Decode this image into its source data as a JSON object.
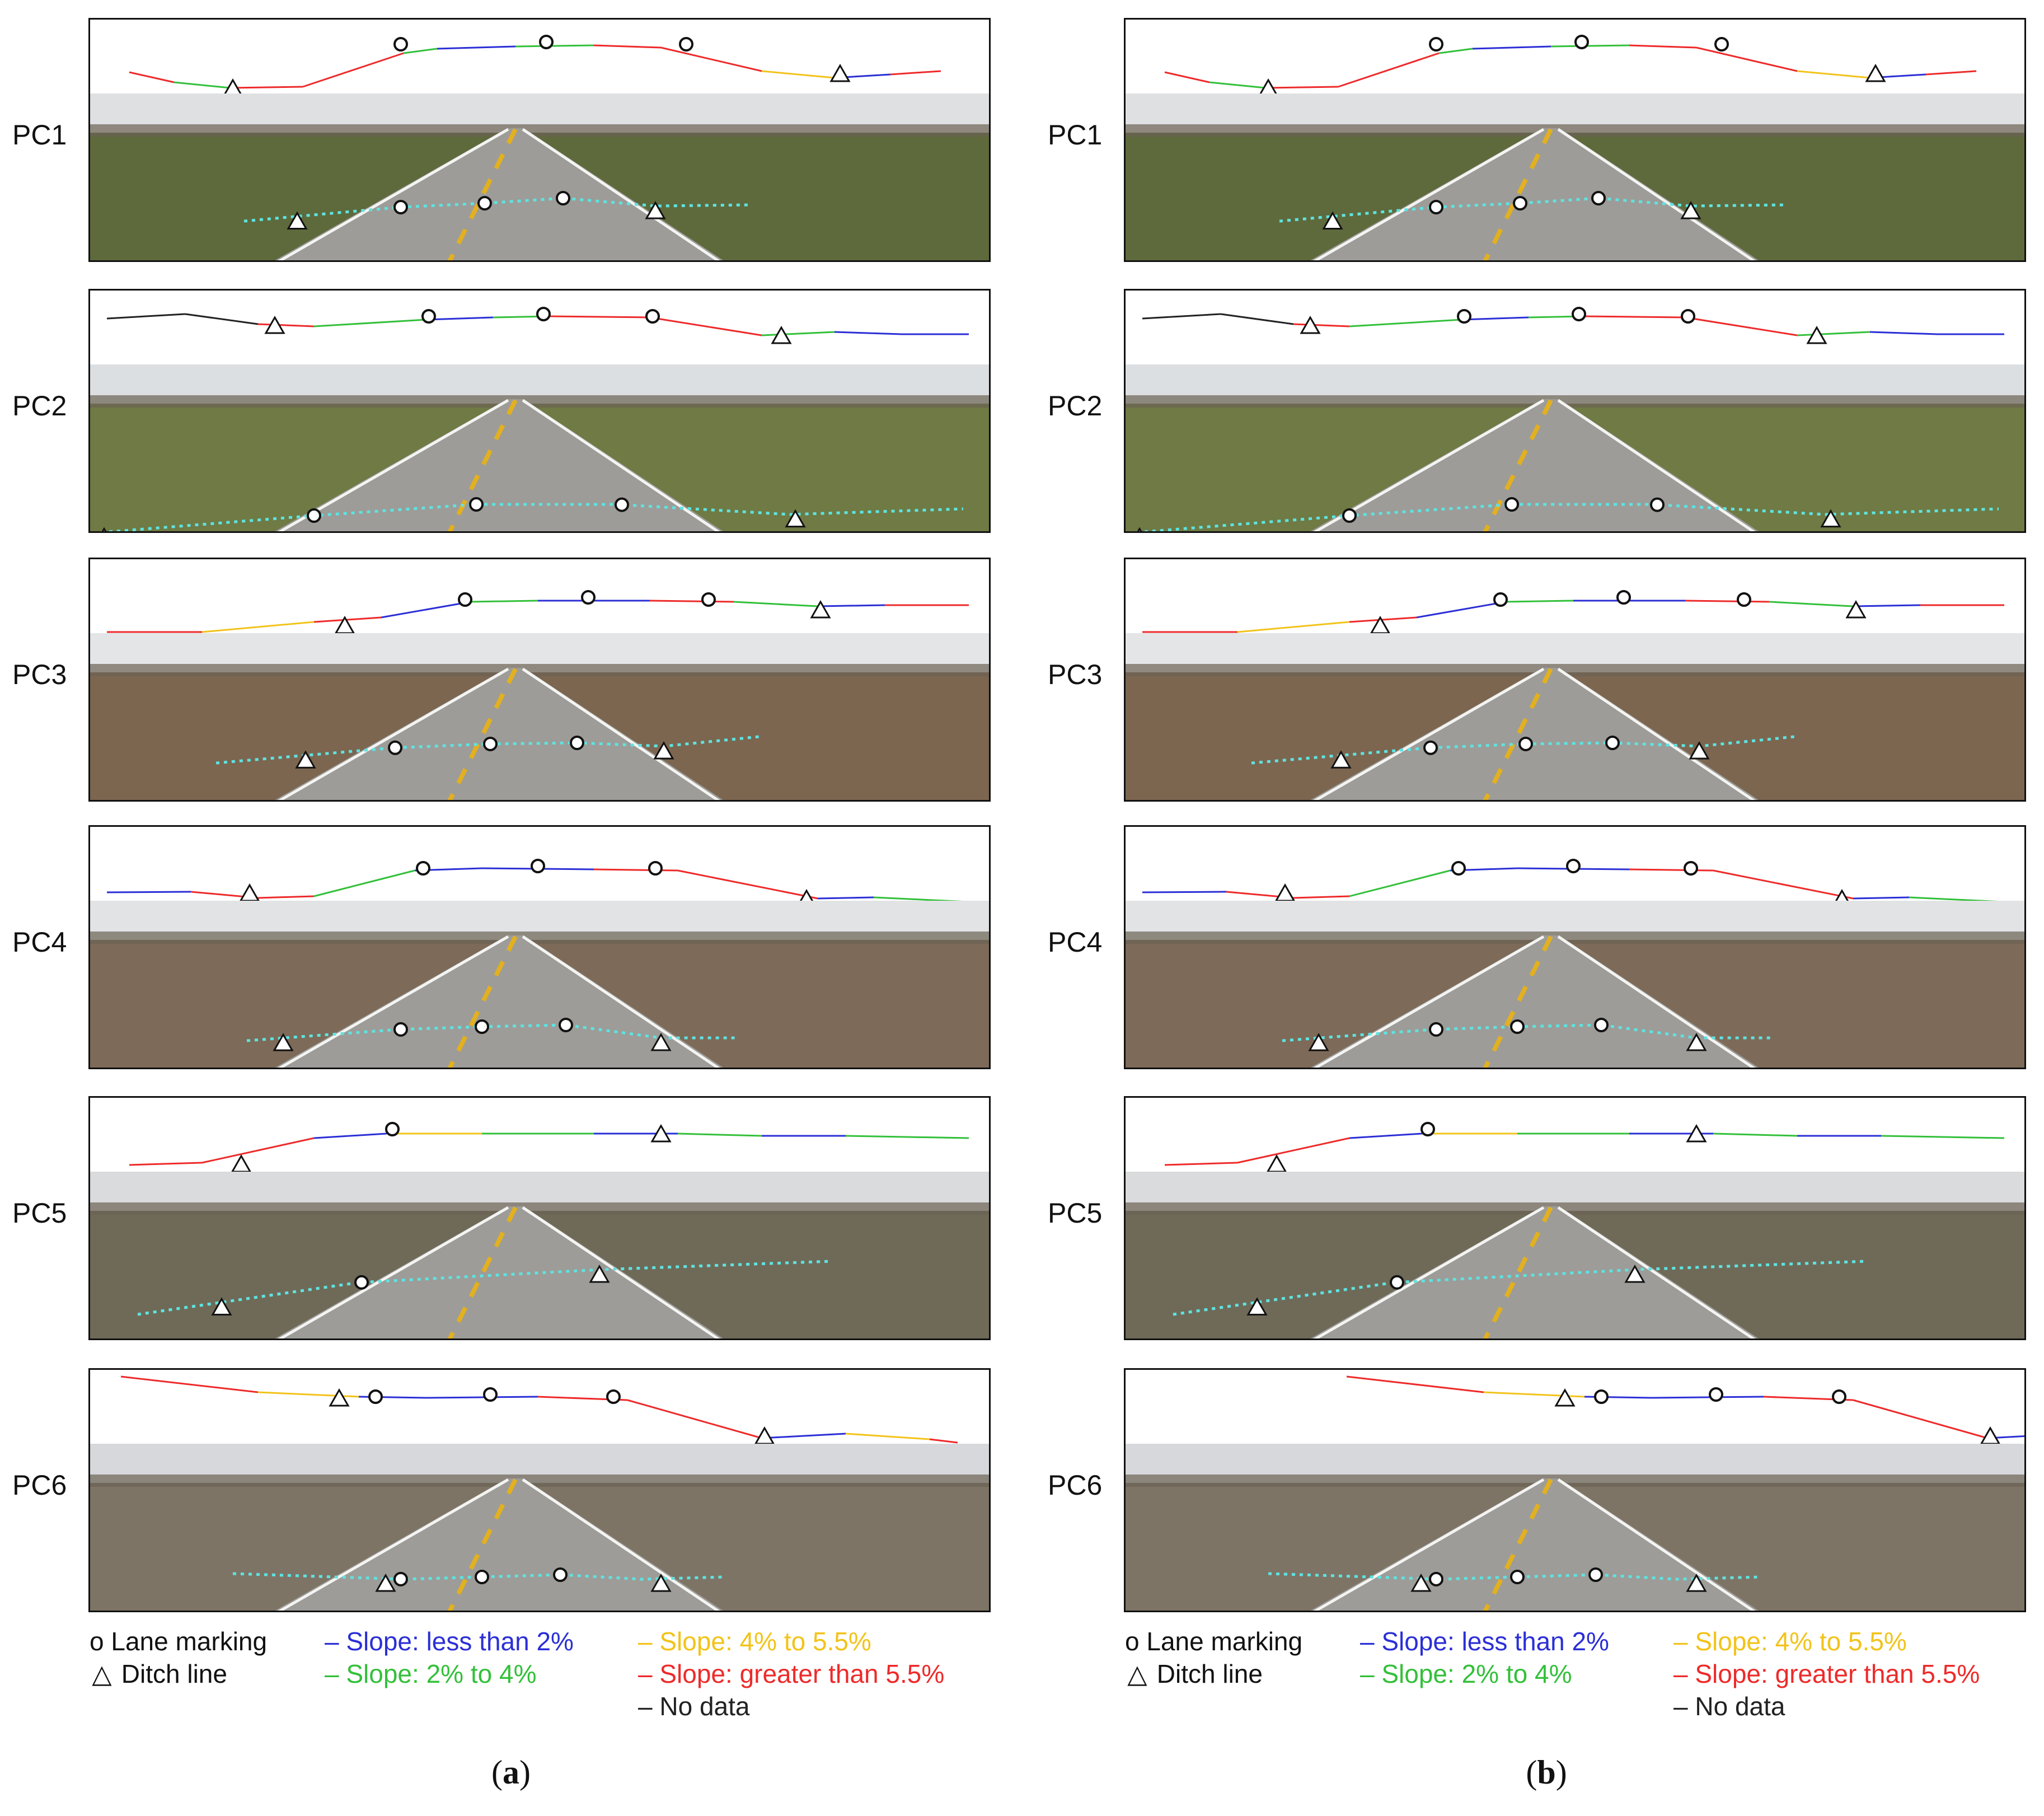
{
  "panels": {
    "a": {
      "caption": "a",
      "rows": [
        {
          "label": "PC1"
        },
        {
          "label": "PC2"
        },
        {
          "label": "PC3"
        },
        {
          "label": "PC4"
        },
        {
          "label": "PC5"
        },
        {
          "label": "PC6"
        }
      ]
    },
    "b": {
      "caption": "b",
      "rows": [
        {
          "label": "PC1"
        },
        {
          "label": "PC2"
        },
        {
          "label": "PC3"
        },
        {
          "label": "PC4"
        },
        {
          "label": "PC5"
        },
        {
          "label": "PC6"
        }
      ]
    }
  },
  "legend": {
    "lane_marking": "o  Lane marking",
    "ditch_line": "Ditch line",
    "slope_lt2": "– Slope: less than 2%",
    "slope_2_4": "– Slope: 2% to 4%",
    "slope_4_55": "– Slope: 4% to 5.5%",
    "slope_gt55": "– Slope: greater than 5.5%",
    "no_data": "– No data"
  },
  "colors": {
    "slope_lt2": "#2b2fd6",
    "slope_2_4": "#33c03a",
    "slope_4_55": "#f2c31a",
    "slope_gt55": "#ee2a2a",
    "no_data": "#222222",
    "ditch_dots": "#5ee3e0"
  },
  "icons": {
    "lane_marking": "circle-icon",
    "ditch_line": "triangle-icon"
  }
}
